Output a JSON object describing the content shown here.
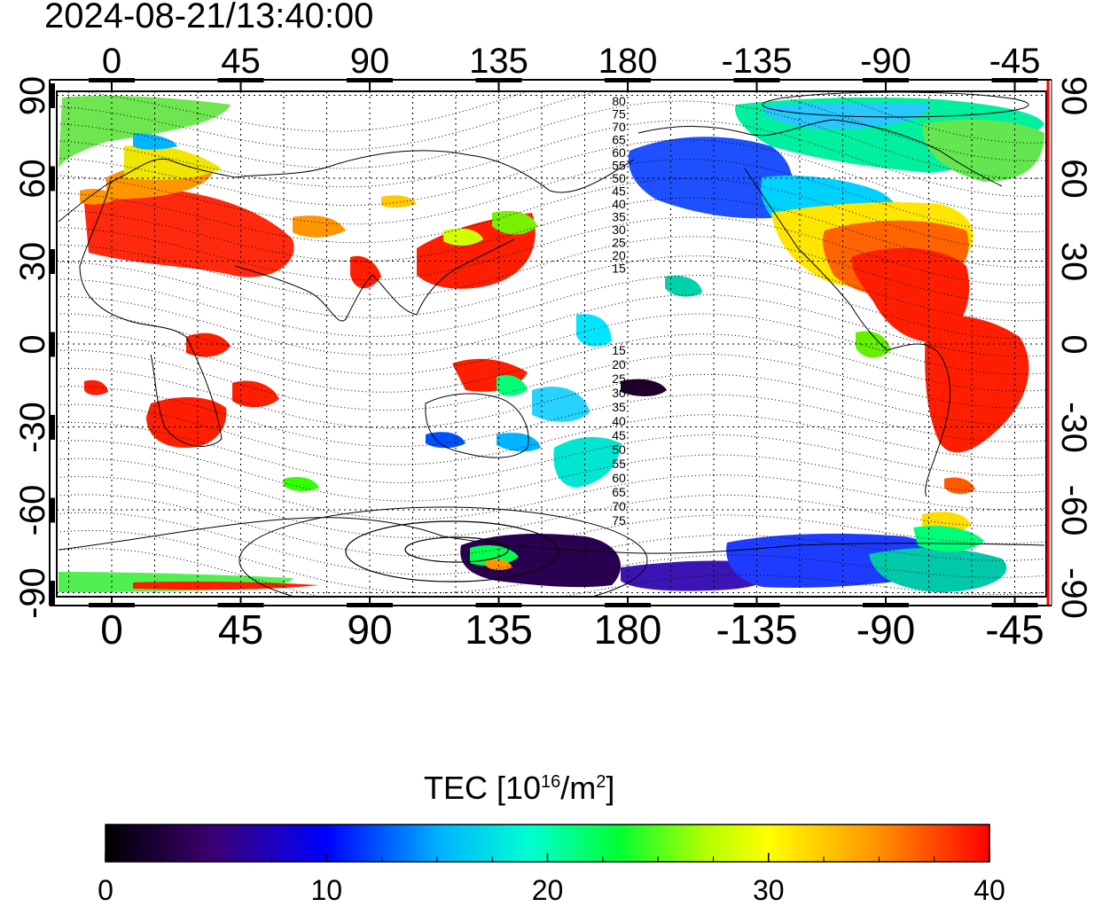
{
  "title": "2024-08-21/13:40:00",
  "map": {
    "lon_ticks": [
      "0",
      "45",
      "90",
      "135",
      "180",
      "-135",
      "-90",
      "-45"
    ],
    "lat_ticks": [
      "90",
      "60",
      "30",
      "0",
      "-30",
      "-60",
      "-90"
    ],
    "magnetic_lat_labels": [
      "80",
      "75",
      "70",
      "65",
      "60",
      "55",
      "50",
      "45",
      "40",
      "35",
      "30",
      "25",
      "20",
      "15",
      "15",
      "20",
      "25",
      "30",
      "35",
      "40",
      "45",
      "50",
      "55",
      "60",
      "65",
      "70",
      "75"
    ]
  },
  "colorbar": {
    "label_prefix": "TEC  [10",
    "label_exp": "16",
    "label_mid": "/m",
    "label_exp2": "2",
    "label_suffix": "]",
    "ticks": [
      "0",
      "10",
      "20",
      "30",
      "40"
    ],
    "stops": [
      "#000000",
      "#3c0070",
      "#0000ff",
      "#00b4ff",
      "#00ffd2",
      "#00ff32",
      "#b4ff00",
      "#ffff00",
      "#ff9600",
      "#ff0000"
    ]
  },
  "colors": {
    "frame": "#000000",
    "right_axis": "#ff0000",
    "grid": "#000000"
  }
}
